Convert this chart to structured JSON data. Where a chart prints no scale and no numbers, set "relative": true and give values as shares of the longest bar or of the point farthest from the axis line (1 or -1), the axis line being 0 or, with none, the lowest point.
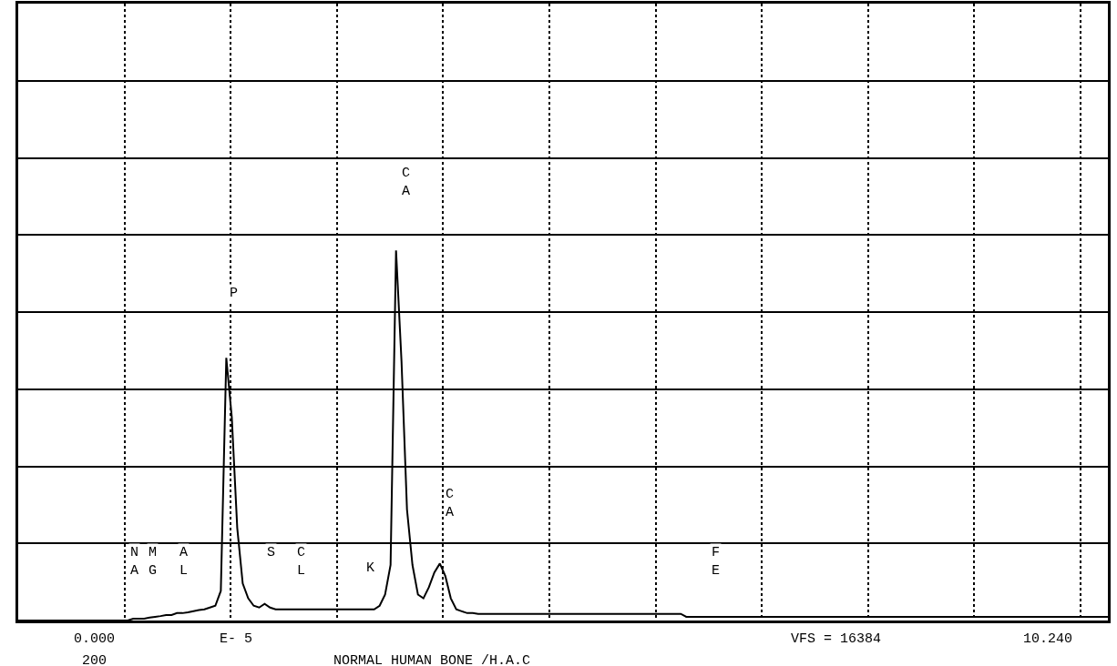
{
  "chart_data": {
    "type": "line",
    "relative": true,
    "grid": true,
    "color": "#000000",
    "categories": [
      null,
      null,
      null,
      null,
      null,
      null,
      null,
      null,
      null,
      null,
      null,
      null,
      null,
      null,
      null,
      null,
      null,
      null,
      null,
      null,
      null,
      null,
      null,
      null,
      null,
      null,
      null,
      null,
      null,
      null,
      null,
      null,
      null,
      null,
      null,
      null,
      null,
      null,
      null,
      null,
      null,
      null,
      null,
      null,
      null,
      null,
      null,
      null,
      null,
      null,
      null,
      null,
      null,
      null,
      null,
      null,
      null,
      null,
      null,
      null,
      null,
      null,
      null,
      null,
      null,
      null,
      null,
      null,
      null,
      null,
      null,
      null,
      null,
      null,
      null,
      null,
      null,
      null,
      null,
      null,
      null,
      null,
      null,
      null,
      null,
      null,
      null,
      null,
      null,
      null,
      null,
      null,
      null,
      null,
      null,
      null,
      null,
      null,
      null,
      null,
      null,
      null,
      null,
      null,
      null,
      null,
      null,
      null,
      null,
      null,
      null,
      null,
      null,
      null,
      null,
      null,
      null,
      null,
      null,
      null,
      null,
      null,
      null,
      null,
      null,
      null,
      null,
      null,
      null,
      null,
      null,
      null,
      null,
      null,
      null,
      null,
      null,
      null,
      null,
      null,
      null,
      null,
      null,
      null,
      null,
      null,
      null,
      null,
      null,
      null,
      null,
      null,
      null,
      null,
      null,
      null,
      null,
      null,
      null,
      null,
      null,
      null,
      null,
      null,
      null,
      null,
      null,
      null,
      null,
      null,
      null,
      null,
      null,
      null,
      null,
      null,
      null,
      null,
      null,
      null,
      null,
      null,
      null,
      null,
      null,
      null,
      null,
      null,
      null,
      null,
      null,
      null,
      null,
      null,
      null,
      null,
      null,
      null,
      null,
      null
    ],
    "values": [
      0,
      0,
      0,
      0,
      0,
      0,
      0,
      0,
      0,
      0,
      0,
      0,
      0,
      0,
      0,
      0,
      0,
      0,
      0,
      0,
      0,
      0.005,
      0.005,
      0.005,
      0.008,
      0.01,
      0.012,
      0.015,
      0.015,
      0.02,
      0.02,
      0.022,
      0.025,
      0.028,
      0.03,
      0.035,
      0.04,
      0.08,
      0.71,
      0.55,
      0.25,
      0.1,
      0.06,
      0.04,
      0.035,
      0.045,
      0.035,
      0.03,
      0.03,
      0.03,
      0.03,
      0.03,
      0.03,
      0.03,
      0.03,
      0.03,
      0.03,
      0.03,
      0.03,
      0.03,
      0.03,
      0.03,
      0.03,
      0.03,
      0.03,
      0.03,
      0.04,
      0.07,
      0.15,
      1,
      0.7,
      0.3,
      0.15,
      0.07,
      0.06,
      0.09,
      0.13,
      0.154,
      0.12,
      0.06,
      0.03,
      0.025,
      0.02,
      0.02,
      0.018,
      0.018,
      0.018,
      0.018,
      0.018,
      0.018,
      0.018,
      0.018,
      0.018,
      0.018,
      0.018,
      0.018,
      0.018,
      0.018,
      0.018,
      0.018,
      0.018,
      0.018,
      0.018,
      0.018,
      0.018,
      0.018,
      0.018,
      0.018,
      0.018,
      0.018,
      0.018,
      0.018,
      0.018,
      0.018,
      0.018,
      0.018,
      0.018,
      0.018,
      0.018,
      0.018,
      0.018,
      0.018,
      0.01,
      0.01,
      0.01,
      0.01,
      0.01,
      0.01,
      0.01,
      0.01,
      0.01,
      0.01,
      0.01,
      0.01,
      0.01,
      0.01,
      0.01,
      0.01,
      0.01,
      0.01,
      0.01,
      0.01,
      0.01,
      0.01,
      0.01,
      0.01,
      0.01,
      0.01,
      0.01,
      0.01,
      0.01,
      0.01,
      0.01,
      0.01,
      0.01,
      0.01,
      0.01,
      0.01,
      0.01,
      0.01,
      0.01,
      0.01,
      0.01,
      0.01,
      0.01,
      0.01,
      0.01,
      0.01,
      0.01,
      0.01,
      0.01,
      0.01,
      0.01,
      0.01,
      0.01,
      0.01,
      0.01,
      0.01,
      0.01,
      0.01,
      0.01,
      0.01,
      0.01,
      0.01,
      0.01,
      0.01,
      0.01,
      0.01,
      0.01,
      0.01,
      0.01,
      0.01,
      0.01,
      0.01,
      0.01,
      0.01,
      0.01,
      0.01,
      0.01,
      0.01
    ],
    "annotations": [
      "NA",
      "MG",
      "AL",
      "P",
      "S",
      "CL",
      "K",
      "CA",
      "CA",
      "FE",
      "0.000",
      "200",
      "E- 5",
      "NORMAL HUMAN BONE /H.A.C",
      "VFS = 16384",
      "10.240"
    ]
  }
}
